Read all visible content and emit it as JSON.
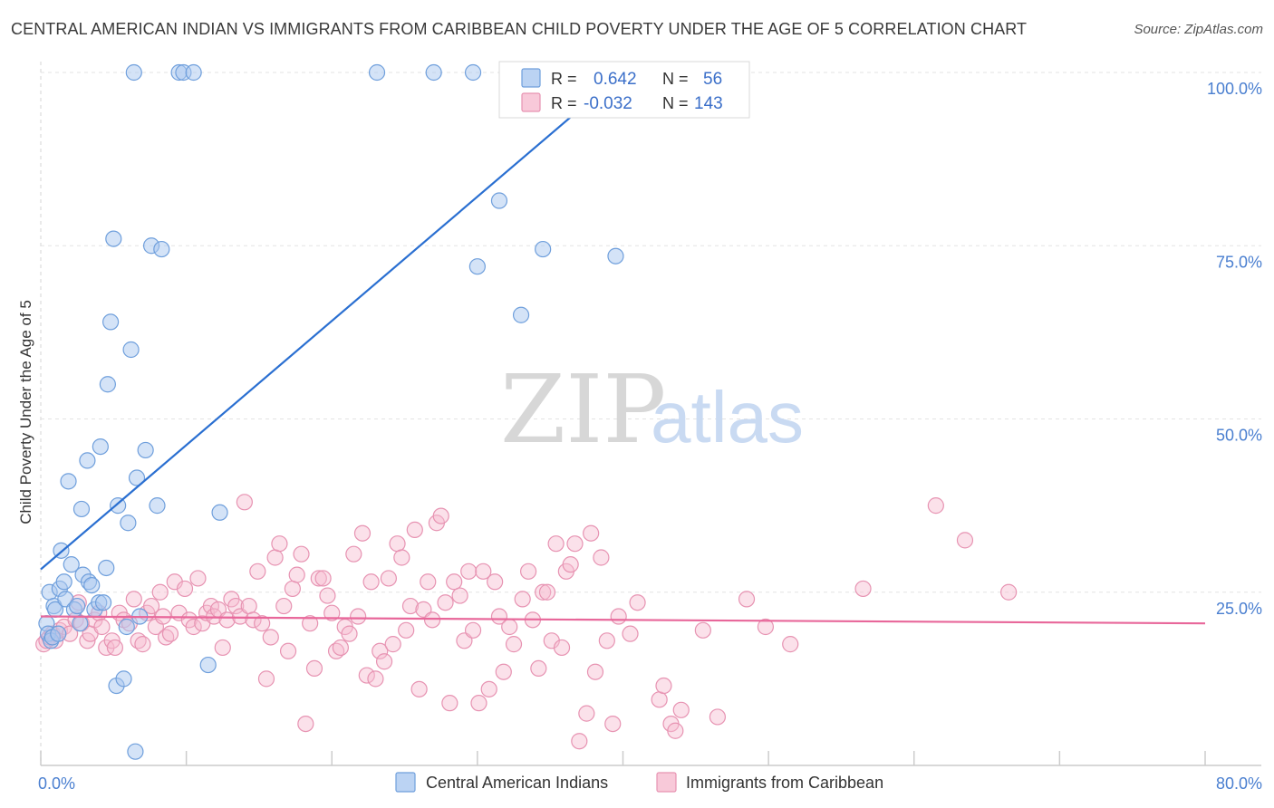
{
  "header": {
    "title": "CENTRAL AMERICAN INDIAN VS IMMIGRANTS FROM CARIBBEAN CHILD POVERTY UNDER THE AGE OF 5 CORRELATION CHART",
    "source": "Source: ZipAtlas.com"
  },
  "watermark": {
    "zip": "ZIP",
    "atlas": "atlas"
  },
  "legend_box": {
    "rows": [
      {
        "r_label": "R =",
        "r_value": "0.642",
        "n_label": "N =",
        "n_value": "56"
      },
      {
        "r_label": "R =",
        "r_value": "-0.032",
        "n_label": "N =",
        "n_value": "143"
      }
    ]
  },
  "colors": {
    "blue_fill": "#aac8f0",
    "blue_stroke": "#6f9fdc",
    "blue_line": "#2a6fd1",
    "pink_fill": "#f6bcd0",
    "pink_stroke": "#e793b2",
    "pink_line": "#e8679a",
    "grid": "#e3e3e3",
    "tick_text": "#4a7fd0"
  },
  "chart_data": {
    "type": "scatter",
    "title": "CENTRAL AMERICAN INDIAN VS IMMIGRANTS FROM CARIBBEAN CHILD POVERTY UNDER THE AGE OF 5 CORRELATION CHART",
    "xlabel": "",
    "ylabel": "Child Poverty Under the Age of 5",
    "xlim": [
      0,
      80
    ],
    "ylim": [
      0,
      100
    ],
    "x_tick_labels": [
      "0.0%",
      "80.0%"
    ],
    "y_ticks": [
      25,
      50,
      75,
      100
    ],
    "y_tick_labels": [
      "25.0%",
      "50.0%",
      "75.0%",
      "100.0%"
    ],
    "legend": [
      "Central American Indians",
      "Immigrants from Caribbean"
    ],
    "series": [
      {
        "name": "Central American Indians",
        "r": 0.642,
        "n": 56,
        "trend": {
          "x": [
            0,
            40
          ],
          "y": [
            28.3,
            100
          ]
        },
        "points": [
          [
            0.4,
            20.5
          ],
          [
            0.5,
            19.0
          ],
          [
            0.6,
            25.0
          ],
          [
            0.7,
            18.0
          ],
          [
            0.8,
            18.5
          ],
          [
            0.9,
            23.0
          ],
          [
            1.0,
            22.5
          ],
          [
            1.2,
            19.0
          ],
          [
            1.3,
            25.5
          ],
          [
            1.4,
            31.0
          ],
          [
            1.6,
            26.5
          ],
          [
            1.7,
            24.0
          ],
          [
            1.9,
            41.0
          ],
          [
            2.1,
            29.0
          ],
          [
            2.3,
            22.5
          ],
          [
            2.5,
            23.0
          ],
          [
            2.7,
            20.5
          ],
          [
            2.8,
            37.0
          ],
          [
            2.9,
            27.5
          ],
          [
            3.2,
            44.0
          ],
          [
            3.3,
            26.5
          ],
          [
            3.5,
            26.0
          ],
          [
            3.7,
            22.5
          ],
          [
            4.0,
            23.5
          ],
          [
            4.1,
            46.0
          ],
          [
            4.3,
            23.5
          ],
          [
            4.5,
            28.5
          ],
          [
            4.6,
            55.0
          ],
          [
            4.8,
            64.0
          ],
          [
            5.0,
            76.0
          ],
          [
            5.2,
            11.5
          ],
          [
            5.3,
            37.5
          ],
          [
            5.7,
            12.5
          ],
          [
            5.9,
            20.0
          ],
          [
            6.0,
            35.0
          ],
          [
            6.2,
            60.0
          ],
          [
            6.4,
            100.0
          ],
          [
            6.5,
            2.0
          ],
          [
            6.6,
            41.5
          ],
          [
            6.8,
            21.5
          ],
          [
            7.2,
            45.5
          ],
          [
            7.6,
            75.0
          ],
          [
            8.0,
            37.5
          ],
          [
            8.3,
            74.5
          ],
          [
            9.5,
            100.0
          ],
          [
            9.8,
            100.0
          ],
          [
            10.5,
            100.0
          ],
          [
            11.5,
            14.5
          ],
          [
            12.3,
            36.5
          ],
          [
            23.1,
            100.0
          ],
          [
            27.0,
            100.0
          ],
          [
            29.7,
            100.0
          ],
          [
            30.0,
            72.0
          ],
          [
            31.5,
            81.5
          ],
          [
            33.0,
            65.0
          ],
          [
            34.5,
            74.5
          ],
          [
            39.5,
            73.5
          ]
        ]
      },
      {
        "name": "Immigrants from Caribbean",
        "r": -0.032,
        "n": 143,
        "trend": {
          "x": [
            0,
            80
          ],
          "y": [
            21.5,
            20.5
          ]
        },
        "points": [
          [
            0.2,
            17.5
          ],
          [
            0.4,
            18.0
          ],
          [
            0.6,
            18.5
          ],
          [
            0.8,
            19.0
          ],
          [
            1.0,
            18.0
          ],
          [
            1.3,
            19.5
          ],
          [
            1.6,
            20.0
          ],
          [
            2.0,
            19.0
          ],
          [
            2.4,
            21.0
          ],
          [
            2.6,
            23.5
          ],
          [
            2.8,
            20.5
          ],
          [
            3.2,
            18.0
          ],
          [
            3.4,
            19.0
          ],
          [
            3.7,
            21.0
          ],
          [
            4.0,
            22.0
          ],
          [
            4.2,
            20.0
          ],
          [
            4.5,
            17.0
          ],
          [
            4.9,
            18.0
          ],
          [
            5.1,
            17.0
          ],
          [
            5.4,
            22.0
          ],
          [
            5.7,
            21.0
          ],
          [
            6.1,
            20.5
          ],
          [
            6.4,
            24.0
          ],
          [
            6.7,
            18.0
          ],
          [
            7.0,
            17.5
          ],
          [
            7.3,
            22.0
          ],
          [
            7.6,
            23.0
          ],
          [
            7.9,
            20.0
          ],
          [
            8.2,
            25.0
          ],
          [
            8.4,
            21.5
          ],
          [
            8.6,
            18.5
          ],
          [
            8.9,
            19.0
          ],
          [
            9.2,
            26.5
          ],
          [
            9.5,
            22.0
          ],
          [
            9.9,
            25.5
          ],
          [
            10.2,
            21.0
          ],
          [
            10.5,
            20.0
          ],
          [
            10.8,
            27.0
          ],
          [
            11.1,
            20.5
          ],
          [
            11.4,
            22.0
          ],
          [
            11.7,
            23.0
          ],
          [
            11.9,
            21.5
          ],
          [
            12.2,
            22.5
          ],
          [
            12.5,
            17.0
          ],
          [
            12.8,
            21.0
          ],
          [
            13.1,
            24.0
          ],
          [
            13.4,
            23.0
          ],
          [
            13.7,
            21.5
          ],
          [
            14.0,
            38.0
          ],
          [
            14.3,
            23.0
          ],
          [
            14.6,
            21.0
          ],
          [
            14.9,
            28.0
          ],
          [
            15.2,
            20.5
          ],
          [
            15.5,
            12.5
          ],
          [
            15.8,
            18.5
          ],
          [
            16.1,
            30.0
          ],
          [
            16.4,
            32.0
          ],
          [
            16.7,
            23.0
          ],
          [
            17.0,
            16.5
          ],
          [
            17.3,
            25.5
          ],
          [
            17.6,
            27.5
          ],
          [
            17.9,
            30.5
          ],
          [
            18.2,
            6.0
          ],
          [
            18.5,
            20.5
          ],
          [
            18.8,
            14.0
          ],
          [
            19.1,
            27.0
          ],
          [
            19.4,
            27.0
          ],
          [
            19.7,
            24.5
          ],
          [
            20.0,
            22.0
          ],
          [
            20.3,
            16.5
          ],
          [
            20.6,
            17.0
          ],
          [
            20.9,
            20.0
          ],
          [
            21.2,
            19.0
          ],
          [
            21.5,
            30.5
          ],
          [
            21.8,
            21.5
          ],
          [
            22.1,
            33.5
          ],
          [
            22.4,
            13.0
          ],
          [
            22.7,
            26.5
          ],
          [
            23.0,
            12.5
          ],
          [
            23.3,
            16.5
          ],
          [
            23.6,
            15.0
          ],
          [
            23.9,
            27.0
          ],
          [
            24.2,
            17.5
          ],
          [
            24.5,
            32.0
          ],
          [
            24.8,
            30.0
          ],
          [
            25.1,
            19.5
          ],
          [
            25.4,
            23.0
          ],
          [
            25.7,
            34.0
          ],
          [
            26.0,
            11.0
          ],
          [
            26.3,
            22.5
          ],
          [
            26.6,
            26.5
          ],
          [
            26.9,
            21.0
          ],
          [
            27.2,
            35.0
          ],
          [
            27.5,
            36.0
          ],
          [
            27.8,
            23.5
          ],
          [
            28.1,
            9.0
          ],
          [
            28.4,
            26.5
          ],
          [
            28.8,
            24.5
          ],
          [
            29.1,
            18.0
          ],
          [
            29.4,
            28.0
          ],
          [
            29.7,
            19.5
          ],
          [
            30.1,
            9.0
          ],
          [
            30.4,
            28.0
          ],
          [
            30.8,
            11.0
          ],
          [
            31.2,
            26.5
          ],
          [
            31.5,
            21.5
          ],
          [
            31.8,
            13.5
          ],
          [
            32.2,
            20.0
          ],
          [
            32.5,
            17.5
          ],
          [
            33.1,
            24.0
          ],
          [
            33.5,
            28.0
          ],
          [
            33.8,
            21.0
          ],
          [
            34.2,
            14.0
          ],
          [
            34.5,
            25.0
          ],
          [
            34.8,
            25.0
          ],
          [
            35.1,
            18.0
          ],
          [
            35.4,
            32.0
          ],
          [
            35.8,
            17.0
          ],
          [
            36.1,
            28.0
          ],
          [
            36.4,
            29.0
          ],
          [
            36.7,
            32.0
          ],
          [
            37.0,
            3.5
          ],
          [
            37.5,
            7.5
          ],
          [
            37.8,
            33.5
          ],
          [
            38.1,
            13.5
          ],
          [
            38.5,
            30.0
          ],
          [
            38.9,
            18.0
          ],
          [
            39.3,
            6.0
          ],
          [
            39.7,
            21.5
          ],
          [
            40.5,
            19.0
          ],
          [
            41.0,
            23.5
          ],
          [
            42.5,
            9.5
          ],
          [
            42.8,
            11.5
          ],
          [
            43.3,
            6.0
          ],
          [
            43.6,
            5.0
          ],
          [
            44.0,
            8.0
          ],
          [
            45.5,
            19.5
          ],
          [
            46.5,
            7.0
          ],
          [
            48.5,
            24.0
          ],
          [
            49.8,
            20.0
          ],
          [
            51.5,
            17.5
          ],
          [
            56.5,
            25.5
          ],
          [
            61.5,
            37.5
          ],
          [
            63.5,
            32.5
          ],
          [
            66.5,
            25.0
          ]
        ]
      }
    ]
  }
}
